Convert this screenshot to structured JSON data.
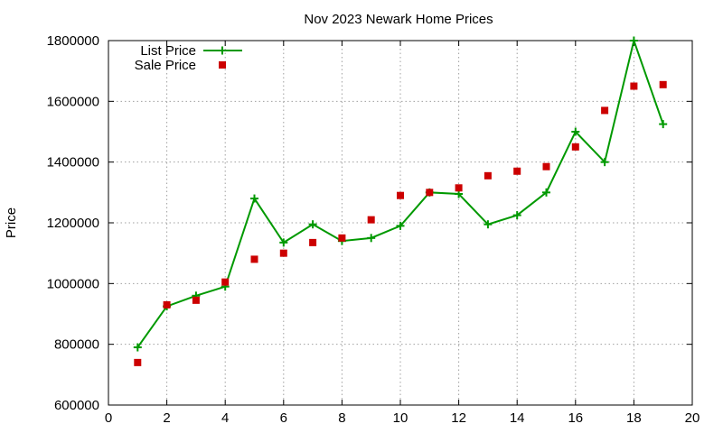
{
  "chart_data": {
    "type": "line",
    "title": "Nov 2023 Newark Home Prices",
    "xlabel": "",
    "ylabel": "Price",
    "xlim": [
      0,
      20
    ],
    "ylim": [
      600000,
      1800000
    ],
    "xticks": [
      0,
      2,
      4,
      6,
      8,
      10,
      12,
      14,
      16,
      18,
      20
    ],
    "yticks": [
      600000,
      800000,
      1000000,
      1200000,
      1400000,
      1600000,
      1800000
    ],
    "grid": true,
    "legend_position": "top-left",
    "series": [
      {
        "name": "List Price",
        "style": "linespoints",
        "marker": "plus",
        "color": "#009900",
        "x": [
          1,
          2,
          3,
          4,
          5,
          6,
          7,
          8,
          9,
          10,
          11,
          12,
          13,
          14,
          15,
          16,
          17,
          18,
          19
        ],
        "values": [
          790000,
          925000,
          960000,
          990000,
          1280000,
          1135000,
          1195000,
          1140000,
          1150000,
          1190000,
          1300000,
          1295000,
          1195000,
          1225000,
          1300000,
          1500000,
          1400000,
          1800000,
          1525000
        ]
      },
      {
        "name": "Sale Price",
        "style": "points",
        "marker": "square",
        "color": "#cc0000",
        "x": [
          1,
          2,
          3,
          4,
          5,
          6,
          7,
          8,
          9,
          10,
          11,
          12,
          13,
          14,
          15,
          16,
          17,
          18,
          19
        ],
        "values": [
          740000,
          930000,
          945000,
          1005000,
          1080000,
          1100000,
          1135000,
          1150000,
          1210000,
          1290000,
          1300000,
          1315000,
          1355000,
          1370000,
          1385000,
          1450000,
          1570000,
          1650000,
          1655000
        ]
      }
    ]
  }
}
